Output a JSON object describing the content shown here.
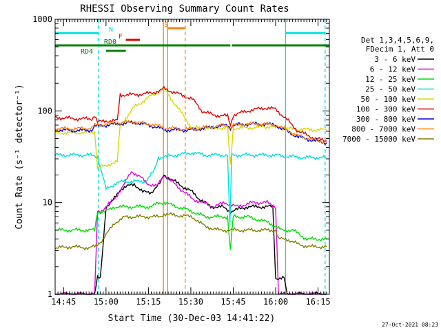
{
  "chart_data": {
    "type": "line",
    "title": "RHESSI Observing Summary Count Rates",
    "xlabel": "Start Time (30-Dec-03 14:41:22)",
    "ylabel": "Count Rate (s⁻¹ detector⁻¹)",
    "yscale": "log",
    "ylim": [
      1,
      1000
    ],
    "xlim_minutes": [
      42,
      139
    ],
    "x_ticks": [
      {
        "m": 45,
        "label": "14:45"
      },
      {
        "m": 60,
        "label": "15:00"
      },
      {
        "m": 75,
        "label": "15:15"
      },
      {
        "m": 90,
        "label": "15:30"
      },
      {
        "m": 105,
        "label": "15:45"
      },
      {
        "m": 120,
        "label": "16:00"
      },
      {
        "m": 135,
        "label": "16:15"
      }
    ],
    "y_ticks": [
      {
        "v": 1,
        "label": "1"
      },
      {
        "v": 10,
        "label": "10"
      },
      {
        "v": 100,
        "label": "100"
      },
      {
        "v": 1000,
        "label": "1000"
      }
    ],
    "legend": {
      "placement": "right",
      "header": [
        "Det 1,3,4,5,6,9,",
        "FDecim 1, Att 0"
      ],
      "entries": [
        {
          "label": "3 - 6 keV",
          "color": "#000000"
        },
        {
          "label": "6 - 12 keV",
          "color": "#e000e0"
        },
        {
          "label": "12 - 25 keV",
          "color": "#00e000"
        },
        {
          "label": "25 - 50 keV",
          "color": "#00e0e0"
        },
        {
          "label": "50 - 100 keV",
          "color": "#d8d800"
        },
        {
          "label": "100 - 300 keV",
          "color": "#e00000"
        },
        {
          "label": "300 - 800 keV",
          "color": "#0000e0"
        },
        {
          "label": "800 - 7000 keV",
          "color": "#ff8000"
        },
        {
          "label": "7000 - 15000 keV",
          "color": "#808000"
        }
      ]
    },
    "series": [
      {
        "name": "3 - 6 keV",
        "color": "#000000",
        "x": [
          42,
          56,
          57,
          58,
          60,
          62,
          65,
          70,
          73,
          76,
          79,
          80.5,
          90.5,
          93,
          97,
          101,
          104,
          110,
          116,
          119,
          120,
          123,
          124,
          138
        ],
        "y": [
          1,
          1,
          1.5,
          1.5,
          9,
          10,
          14,
          16,
          13,
          13,
          16,
          20,
          13,
          11,
          9,
          9,
          8,
          9,
          9,
          9,
          1.5,
          1.5,
          1,
          1
        ]
      },
      {
        "name": "6 - 12 keV",
        "color": "#e000e0",
        "x": [
          42,
          56,
          57,
          58,
          60,
          63,
          66,
          69,
          72,
          75,
          78,
          80.5,
          90.5,
          94,
          98,
          102,
          106,
          112,
          117,
          120,
          121,
          138
        ],
        "y": [
          1,
          1,
          8,
          8,
          9,
          11,
          15,
          22,
          19,
          16,
          15,
          20,
          11,
          10,
          9,
          10,
          9,
          10,
          10,
          9,
          1,
          1
        ]
      },
      {
        "name": "12 - 25 keV",
        "color": "#00e000",
        "x": [
          42,
          47,
          52,
          56,
          57,
          60,
          63,
          68,
          72,
          76,
          79,
          80.5,
          90.5,
          95,
          100,
          103,
          104,
          105,
          110,
          118,
          122,
          126,
          131,
          138
        ],
        "y": [
          5,
          5,
          5,
          5,
          8,
          8,
          9,
          9,
          9,
          9,
          10,
          10,
          8,
          7,
          7,
          7,
          3,
          7,
          7,
          6,
          5,
          5,
          4,
          4
        ]
      },
      {
        "name": "25 - 50 keV",
        "color": "#00e0e0",
        "x": [
          42,
          48,
          54,
          57,
          60,
          63,
          66,
          70,
          74,
          77,
          78.5,
          79,
          90.5,
          95,
          100,
          103,
          103.8,
          104.5,
          106,
          112,
          118,
          124,
          130,
          138
        ],
        "y": [
          33,
          33,
          33,
          32,
          14,
          16,
          17,
          17,
          17,
          22,
          31,
          31,
          35,
          33,
          33,
          33,
          6,
          33,
          33,
          33,
          33,
          32,
          31,
          31
        ]
      },
      {
        "name": "50 - 100 keV",
        "color": "#d8d800",
        "x": [
          42,
          50,
          55,
          56,
          57,
          60,
          62,
          64,
          65,
          70,
          75,
          79,
          80.5,
          90.5,
          100,
          103,
          104,
          105,
          110,
          118,
          122,
          128,
          134,
          138
        ],
        "y": [
          58,
          58,
          58,
          60,
          24,
          25,
          27,
          28,
          70,
          110,
          140,
          165,
          175,
          65,
          65,
          65,
          25,
          65,
          65,
          68,
          65,
          63,
          62,
          62
        ]
      },
      {
        "name": "100 - 300 keV",
        "color": "#e00000",
        "x": [
          42,
          50,
          55,
          56,
          57,
          60,
          64,
          65,
          70,
          75,
          79,
          80.5,
          90.5,
          94,
          98,
          103,
          104,
          105,
          110,
          116,
          120,
          124,
          128,
          134,
          138
        ],
        "y": [
          85,
          82,
          82,
          90,
          75,
          78,
          78,
          150,
          150,
          155,
          165,
          175,
          135,
          100,
          90,
          88,
          70,
          90,
          100,
          108,
          105,
          80,
          60,
          50,
          47
        ]
      },
      {
        "name": "300 - 800 keV",
        "color": "#0000e0",
        "x": [
          42,
          50,
          55,
          56,
          57,
          60,
          64,
          70,
          75,
          79,
          80.5,
          90.5,
          95,
          103,
          104,
          105,
          110,
          116,
          120,
          124,
          128,
          134,
          138
        ],
        "y": [
          62,
          61,
          62,
          68,
          68,
          70,
          72,
          75,
          70,
          65,
          62,
          62,
          65,
          70,
          65,
          70,
          72,
          72,
          70,
          60,
          52,
          47,
          45
        ]
      },
      {
        "name": "800 - 7000 keV",
        "color": "#ff8000",
        "x": [
          42,
          50,
          55,
          56,
          57,
          60,
          64,
          70,
          75,
          79,
          80.5,
          90.5,
          95,
          103,
          104,
          105,
          110,
          116,
          120,
          124,
          128,
          134,
          138
        ],
        "y": [
          64,
          64,
          65,
          70,
          70,
          72,
          74,
          76,
          72,
          68,
          65,
          63,
          66,
          70,
          64,
          70,
          72,
          72,
          70,
          62,
          53,
          48,
          46
        ]
      },
      {
        "name": "7000 - 15000 keV",
        "color": "#808000",
        "x": [
          42,
          48,
          54,
          56,
          57,
          59,
          63,
          67,
          72,
          76,
          79,
          80.5,
          90.5,
          95,
          100,
          105,
          110,
          116,
          120,
          121,
          124,
          128,
          132,
          138
        ],
        "y": [
          3.2,
          3.3,
          3.2,
          3.3,
          3.5,
          4,
          6,
          7,
          7,
          7,
          7,
          7.5,
          7,
          5.5,
          5,
          5,
          5,
          5,
          5,
          4,
          4,
          3.5,
          3.3,
          3.3
        ]
      }
    ],
    "vlines": [
      {
        "m": 57.3,
        "color": "#00e0e0",
        "style": "dashed"
      },
      {
        "m": 123.5,
        "color": "#00e0e0",
        "style": "solid"
      },
      {
        "m": 137.5,
        "color": "#00e0e0",
        "style": "dashed"
      },
      {
        "m": 80.3,
        "color": "#ff8000",
        "style": "solid"
      },
      {
        "m": 81.8,
        "color": "#ff8000",
        "style": "solid"
      },
      {
        "m": 88.0,
        "color": "#ff8000",
        "style": "dashed"
      }
    ],
    "bars": [
      {
        "label": "N",
        "color": "#00e0e0",
        "ranges": [
          [
            42,
            57.3
          ],
          [
            123.5,
            137.5
          ]
        ],
        "y": 1000
      },
      {
        "label": "S",
        "color": "#ff8000",
        "ranges": [
          [
            81.8,
            88.0
          ]
        ],
        "y": 1000
      },
      {
        "label": "F",
        "color": "#e00000",
        "ranges": [
          [
            67,
            72
          ]
        ],
        "y": 1000
      },
      {
        "label": "RD0",
        "color": "#008000",
        "ranges": [
          [
            42,
            104
          ],
          [
            104.5,
            139
          ]
        ],
        "y": 1000
      },
      {
        "label": "RD4",
        "color": "#008000",
        "ranges": [
          [
            60,
            67
          ]
        ],
        "y": 1000
      }
    ],
    "timestamp": "27-Oct-2021 08:23"
  }
}
